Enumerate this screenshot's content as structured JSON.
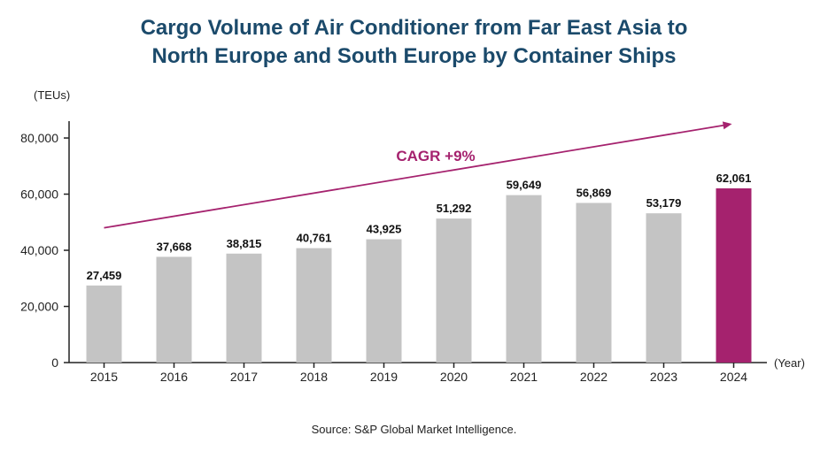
{
  "title": {
    "line1": "Cargo Volume of Air Conditioner from Far East Asia to",
    "line2": "North Europe and South Europe by Container Ships"
  },
  "source": "Source: S&P Global Market Intelligence.",
  "colors": {
    "title": "#1b4a6b",
    "bar": "#c4c4c4",
    "highlight_bar": "#a5226e",
    "trend": "#a5226e",
    "axis": "#222222"
  },
  "chart_data": {
    "type": "bar",
    "ylabel": "(TEUs)",
    "xlabel": "(Year)",
    "categories": [
      "2015",
      "2016",
      "2017",
      "2018",
      "2019",
      "2020",
      "2021",
      "2022",
      "2023",
      "2024"
    ],
    "values": [
      27459,
      37668,
      38815,
      40761,
      43925,
      51292,
      59649,
      56869,
      53179,
      62061
    ],
    "value_labels": [
      "27,459",
      "37,668",
      "38,815",
      "40,761",
      "43,925",
      "51,292",
      "59,649",
      "56,869",
      "53,179",
      "62,061"
    ],
    "highlight": "2024",
    "ylim": [
      0,
      86000
    ],
    "yticks": [
      0,
      20000,
      40000,
      60000,
      80000
    ],
    "ytick_labels": [
      "0",
      "20,000",
      "40,000",
      "60,000",
      "80,000"
    ],
    "grid": false,
    "annotation": {
      "text": "CAGR +9%",
      "arrow_from": {
        "x": "2015",
        "y": 48000
      },
      "arrow_to": {
        "x": "2024",
        "y": 85000
      }
    }
  }
}
